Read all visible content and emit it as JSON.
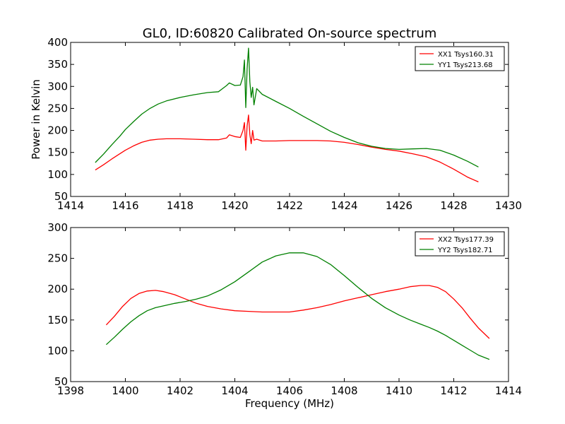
{
  "title": "GL0, ID:60820 Calibrated On-source spectrum",
  "chart_data": [
    {
      "type": "line",
      "title": "GL0, ID:60820 Calibrated On-source spectrum",
      "xlabel": "",
      "ylabel": "Power in Kelvin",
      "xlim": [
        1414,
        1430
      ],
      "ylim": [
        50,
        400
      ],
      "xticks": [
        1414,
        1416,
        1418,
        1420,
        1422,
        1424,
        1426,
        1428,
        1430
      ],
      "yticks": [
        50,
        100,
        150,
        200,
        250,
        300,
        350,
        400
      ],
      "grid": false,
      "legend_position": "top-right",
      "series": [
        {
          "name": "XX1 Tsys160.31",
          "color": "#ff0000",
          "x": [
            1414.9,
            1415.2,
            1415.5,
            1415.8,
            1416.0,
            1416.3,
            1416.6,
            1416.9,
            1417.2,
            1417.5,
            1418.0,
            1418.5,
            1419.0,
            1419.4,
            1419.7,
            1419.8,
            1420.0,
            1420.2,
            1420.3,
            1420.35,
            1420.4,
            1420.45,
            1420.5,
            1420.55,
            1420.6,
            1420.65,
            1420.7,
            1420.8,
            1421.0,
            1421.5,
            1422.0,
            1422.5,
            1423.0,
            1423.5,
            1424.0,
            1424.5,
            1425.0,
            1425.5,
            1426.0,
            1426.5,
            1427.0,
            1427.5,
            1428.0,
            1428.5,
            1428.9
          ],
          "values": [
            110,
            122,
            135,
            147,
            155,
            165,
            173,
            178,
            180,
            181,
            181,
            180,
            179,
            179,
            183,
            190,
            186,
            184,
            200,
            218,
            155,
            210,
            235,
            190,
            170,
            200,
            178,
            180,
            176,
            176,
            177,
            177,
            177,
            176,
            173,
            168,
            162,
            157,
            153,
            147,
            140,
            128,
            112,
            94,
            83
          ]
        },
        {
          "name": "YY1 Tsys213.68",
          "color": "#008000",
          "x": [
            1414.9,
            1415.2,
            1415.5,
            1415.8,
            1416.0,
            1416.3,
            1416.6,
            1416.9,
            1417.2,
            1417.5,
            1418.0,
            1418.5,
            1419.0,
            1419.4,
            1419.7,
            1419.8,
            1420.0,
            1420.2,
            1420.3,
            1420.35,
            1420.4,
            1420.45,
            1420.5,
            1420.55,
            1420.6,
            1420.65,
            1420.7,
            1420.8,
            1421.0,
            1421.5,
            1422.0,
            1422.5,
            1423.0,
            1423.5,
            1424.0,
            1424.5,
            1425.0,
            1425.5,
            1426.0,
            1426.5,
            1427.0,
            1427.5,
            1428.0,
            1428.5,
            1428.9
          ],
          "values": [
            127,
            146,
            167,
            187,
            202,
            220,
            237,
            250,
            260,
            267,
            275,
            281,
            286,
            288,
            302,
            308,
            302,
            303,
            322,
            360,
            252,
            340,
            387,
            310,
            275,
            298,
            258,
            295,
            282,
            266,
            250,
            232,
            215,
            198,
            184,
            172,
            164,
            159,
            157,
            158,
            159,
            155,
            144,
            130,
            117
          ]
        }
      ]
    },
    {
      "type": "line",
      "title": "",
      "xlabel": "Frequency (MHz)",
      "ylabel": "",
      "xlim": [
        1398,
        1414
      ],
      "ylim": [
        50,
        300
      ],
      "xticks": [
        1398,
        1400,
        1402,
        1404,
        1406,
        1408,
        1410,
        1412,
        1414
      ],
      "yticks": [
        50,
        100,
        150,
        200,
        250,
        300
      ],
      "grid": false,
      "legend_position": "top-right",
      "series": [
        {
          "name": "XX2 Tsys177.39",
          "color": "#ff0000",
          "x": [
            1399.3,
            1399.6,
            1399.9,
            1400.2,
            1400.5,
            1400.8,
            1401.1,
            1401.4,
            1401.8,
            1402.2,
            1402.6,
            1403.0,
            1403.5,
            1404.0,
            1404.5,
            1405.0,
            1405.5,
            1406.0,
            1406.5,
            1407.0,
            1407.5,
            1408.0,
            1408.5,
            1409.0,
            1409.5,
            1410.0,
            1410.4,
            1410.8,
            1411.1,
            1411.4,
            1411.7,
            1412.0,
            1412.3,
            1412.6,
            1412.9,
            1413.3
          ],
          "values": [
            142,
            156,
            172,
            185,
            193,
            197,
            198,
            196,
            191,
            184,
            177,
            172,
            168,
            165,
            164,
            163,
            163,
            163,
            166,
            170,
            175,
            181,
            186,
            191,
            196,
            200,
            204,
            206,
            206,
            203,
            196,
            184,
            170,
            153,
            137,
            120
          ]
        },
        {
          "name": "YY2 Tsys182.71",
          "color": "#008000",
          "x": [
            1399.3,
            1399.6,
            1399.9,
            1400.2,
            1400.5,
            1400.8,
            1401.1,
            1401.4,
            1401.8,
            1402.2,
            1402.6,
            1403.0,
            1403.5,
            1404.0,
            1404.5,
            1405.0,
            1405.5,
            1406.0,
            1406.5,
            1407.0,
            1407.5,
            1408.0,
            1408.5,
            1409.0,
            1409.5,
            1410.0,
            1410.4,
            1410.8,
            1411.1,
            1411.4,
            1411.7,
            1412.0,
            1412.3,
            1412.6,
            1412.9,
            1413.3
          ],
          "values": [
            110,
            122,
            135,
            147,
            157,
            165,
            170,
            173,
            177,
            180,
            184,
            189,
            199,
            212,
            228,
            244,
            254,
            259,
            259,
            253,
            240,
            222,
            203,
            185,
            170,
            158,
            150,
            143,
            138,
            132,
            125,
            117,
            109,
            101,
            93,
            86
          ]
        }
      ]
    }
  ]
}
